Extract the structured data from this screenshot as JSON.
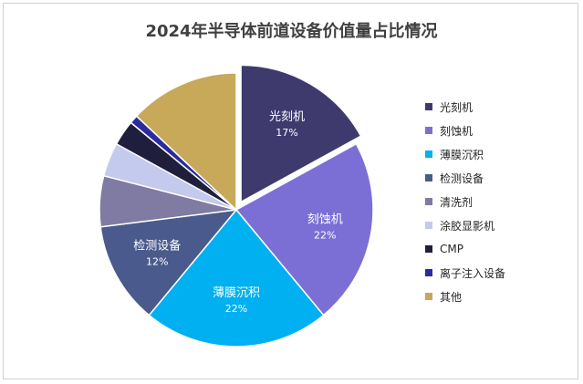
{
  "chart_data": {
    "type": "pie",
    "title": "2024年半导体前道设备价值量占比情况",
    "slices": [
      {
        "name": "光刻机",
        "value": 17,
        "label": "17%",
        "color": "#3E3A6E",
        "exploded": true,
        "show_label": true
      },
      {
        "name": "刻蚀机",
        "value": 22,
        "label": "22%",
        "color": "#7B6FD6",
        "show_label": true
      },
      {
        "name": "薄膜沉积",
        "value": 22,
        "label": "22%",
        "color": "#00B0F0",
        "show_label": true
      },
      {
        "name": "检测设备",
        "value": 12,
        "label": "12%",
        "color": "#4A5A8C",
        "show_label": true
      },
      {
        "name": "清洗剂",
        "value": 6,
        "label": "",
        "color": "#7F7BA3",
        "show_label": false
      },
      {
        "name": "涂胶显影机",
        "value": 4,
        "label": "",
        "color": "#C4C9EE",
        "show_label": false
      },
      {
        "name": "CMP",
        "value": 3,
        "label": "",
        "color": "#1F1F3D",
        "show_label": false
      },
      {
        "name": "离子注入设备",
        "value": 1,
        "label": "",
        "color": "#2B2B9E",
        "show_label": false
      },
      {
        "name": "其他",
        "value": 13,
        "label": "",
        "color": "#C8A95A",
        "show_label": false
      }
    ],
    "legend_position": "right"
  }
}
